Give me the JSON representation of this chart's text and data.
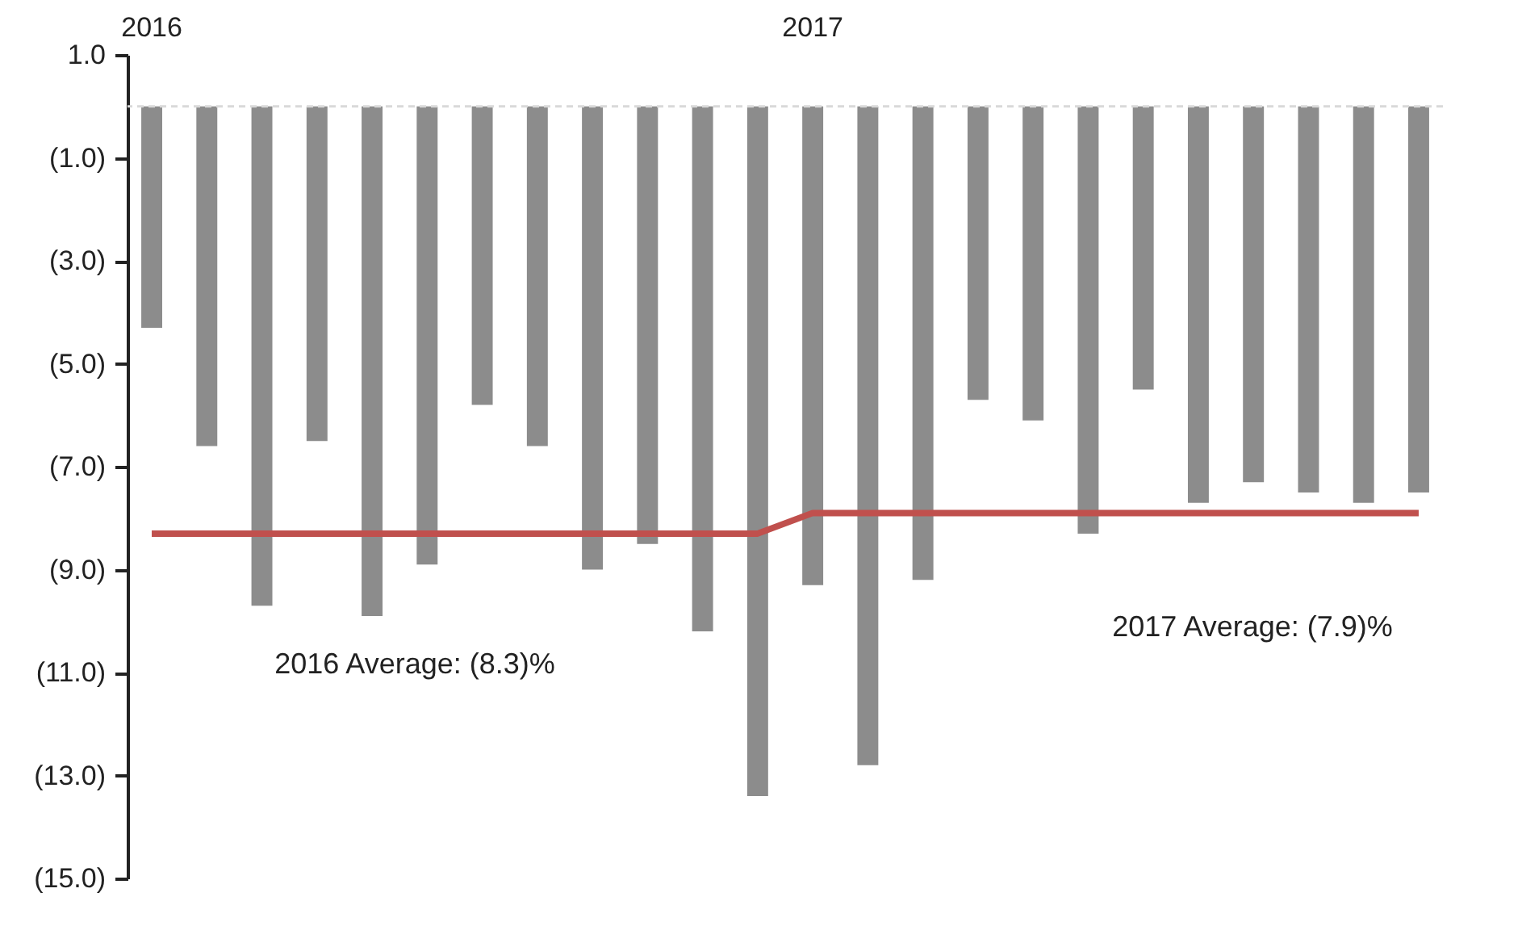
{
  "chart_data": {
    "type": "bar",
    "categories": [
      "2016",
      null,
      null,
      null,
      null,
      null,
      null,
      null,
      null,
      null,
      null,
      null,
      "2017",
      null,
      null,
      null,
      null,
      null,
      null,
      null,
      null,
      null,
      null,
      null
    ],
    "series": [
      {
        "color": "#8c8c8c",
        "values": [
          -4.3,
          -6.6,
          -9.7,
          -6.5,
          -9.9,
          -8.9,
          -5.8,
          -6.6,
          -9.0,
          -8.5,
          -10.2,
          -13.4,
          -9.3,
          -12.8,
          -9.2,
          -5.7,
          -6.1,
          -8.3,
          -5.5,
          -7.7,
          -7.3,
          -7.5,
          -7.7,
          -7.5
        ]
      },
      {
        "type": "line",
        "color": "#c0504d",
        "values": [
          -8.3,
          -8.3,
          -8.3,
          -8.3,
          -8.3,
          -8.3,
          -8.3,
          -8.3,
          -8.3,
          -8.3,
          -8.3,
          -8.3,
          -7.9,
          -7.9,
          -7.9,
          -7.9,
          -7.9,
          -7.9,
          -7.9,
          -7.9,
          -7.9,
          -7.9,
          -7.9,
          -7.9
        ]
      }
    ],
    "ylim": [
      -15,
      1
    ],
    "yticks": [
      {
        "value": 1,
        "label": "1.0"
      },
      {
        "value": -1,
        "label": "(1.0)"
      },
      {
        "value": -3,
        "label": "(3.0)"
      },
      {
        "value": -5,
        "label": "(5.0)"
      },
      {
        "value": -7,
        "label": "(7.0)"
      },
      {
        "value": -9,
        "label": "(9.0)"
      },
      {
        "value": -11,
        "label": "(11.0)"
      },
      {
        "value": -13,
        "label": "(13.0)"
      },
      {
        "value": -15,
        "label": "(15.0)"
      }
    ],
    "ref_lines": [
      {
        "axis": "y",
        "value": 0,
        "color": "#d9d9d9",
        "line_style": "dashed"
      }
    ],
    "annotations": [
      "2016 Average: (8.3)%",
      "2017 Average: (7.9)%"
    ],
    "grid": false
  }
}
